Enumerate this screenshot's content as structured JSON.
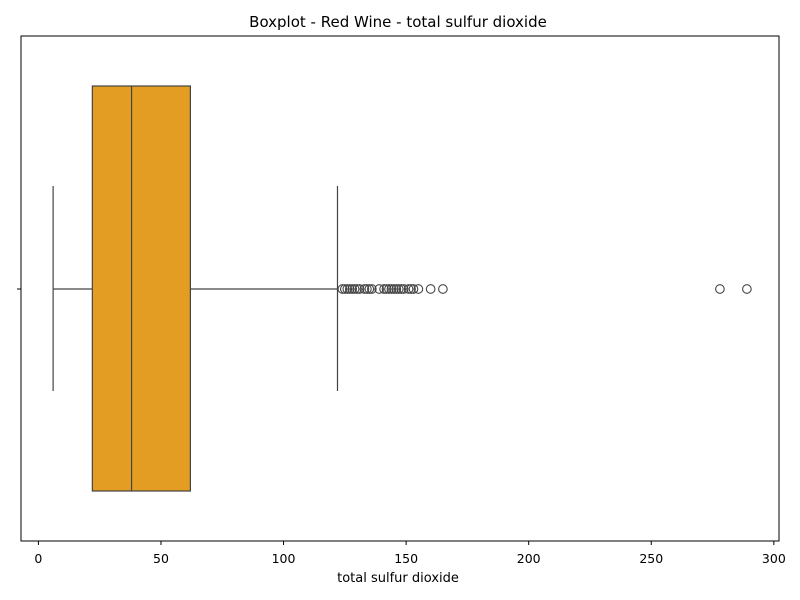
{
  "chart_data": {
    "type": "boxplot",
    "title": "Boxplot - Red Wine - total sulfur dioxide",
    "xlabel": "total sulfur dioxide",
    "ylabel": "",
    "orientation": "horizontal",
    "xlim": [
      -7.1,
      302.1
    ],
    "xticks": [
      0,
      50,
      100,
      150,
      200,
      250,
      300
    ],
    "grid": false,
    "box": {
      "min": 6,
      "q1": 22,
      "median": 38,
      "q3": 62,
      "max": 122
    },
    "outliers": [
      124,
      125,
      126,
      127,
      128,
      129,
      130,
      131,
      133,
      134,
      135,
      136,
      139,
      141,
      142,
      143,
      144,
      145,
      146,
      147,
      148,
      149,
      151,
      152,
      153,
      155,
      160,
      165,
      278,
      289
    ],
    "colors": {
      "box_fill": "#E39D22",
      "line": "#444444"
    }
  }
}
